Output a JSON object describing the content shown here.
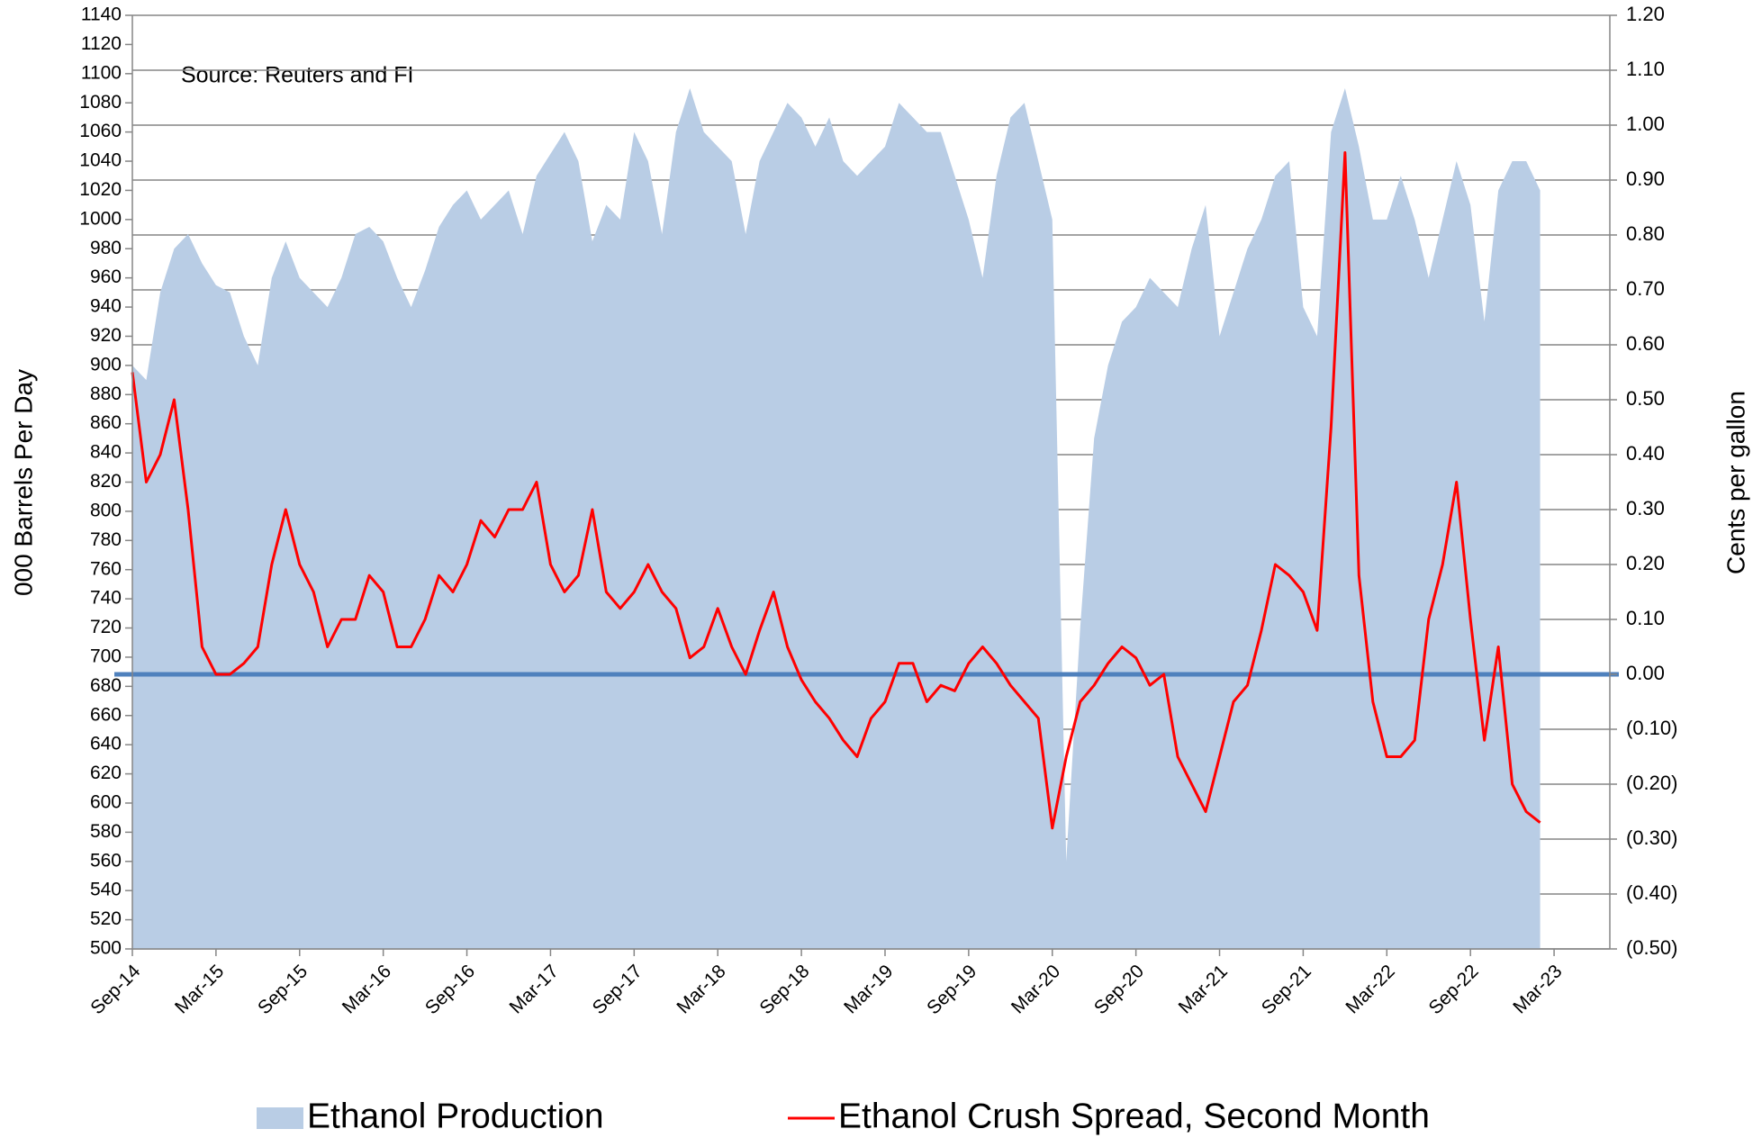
{
  "chart_data": {
    "type": "combo",
    "annotation": "Source: Reuters and FI",
    "ylabel": "000 Barrels Per Day",
    "y2label": "Cents per gallon",
    "categories": [
      "Sep-14",
      null,
      null,
      null,
      null,
      null,
      "Mar-15",
      null,
      null,
      null,
      null,
      null,
      "Sep-15",
      null,
      null,
      null,
      null,
      null,
      "Mar-16",
      null,
      null,
      null,
      null,
      null,
      "Sep-16",
      null,
      null,
      null,
      null,
      null,
      "Mar-17",
      null,
      null,
      null,
      null,
      null,
      "Sep-17",
      null,
      null,
      null,
      null,
      null,
      "Mar-18",
      null,
      null,
      null,
      null,
      null,
      "Sep-18",
      null,
      null,
      null,
      null,
      null,
      "Mar-19",
      null,
      null,
      null,
      null,
      null,
      "Sep-19",
      null,
      null,
      null,
      null,
      null,
      "Mar-20",
      null,
      null,
      null,
      null,
      null,
      "Sep-20",
      null,
      null,
      null,
      null,
      null,
      "Mar-21",
      null,
      null,
      null,
      null,
      null,
      "Sep-21",
      null,
      null,
      null,
      null,
      null,
      "Mar-22",
      null,
      null,
      null,
      null,
      null,
      "Sep-22",
      null,
      null,
      null,
      null,
      null,
      "Mar-23",
      null,
      null,
      null
    ],
    "series": [
      {
        "name": "Ethanol Production",
        "type": "area",
        "color": "#b9cde5",
        "axis": "y",
        "values": [
          900,
          890,
          950,
          980,
          990,
          970,
          955,
          950,
          920,
          900,
          960,
          985,
          960,
          950,
          940,
          960,
          990,
          995,
          985,
          960,
          940,
          965,
          995,
          1010,
          1020,
          1000,
          1010,
          1020,
          990,
          1030,
          1045,
          1060,
          1040,
          985,
          1010,
          1000,
          1060,
          1040,
          990,
          1060,
          1090,
          1060,
          1050,
          1040,
          990,
          1040,
          1060,
          1080,
          1070,
          1050,
          1070,
          1040,
          1030,
          1040,
          1050,
          1080,
          1070,
          1060,
          1060,
          1030,
          1000,
          960,
          1030,
          1070,
          1080,
          1040,
          1000,
          560,
          720,
          850,
          900,
          930,
          940,
          960,
          950,
          940,
          980,
          1010,
          920,
          950,
          980,
          1000,
          1030,
          1040,
          940,
          920,
          1060,
          1090,
          1050,
          1000,
          1000,
          1030,
          1000,
          960,
          1000,
          1040,
          1010,
          930,
          1020,
          1040,
          1040,
          1020,
          null,
          null,
          null,
          null
        ]
      },
      {
        "name": "Ethanol Crush Spread, Second Month",
        "type": "line",
        "color": "#ff0000",
        "axis": "y2",
        "values": [
          0.55,
          0.35,
          0.4,
          0.5,
          0.3,
          0.05,
          0,
          0,
          0.02,
          0.05,
          0.2,
          0.3,
          0.2,
          0.15,
          0.05,
          0.1,
          0.1,
          0.18,
          0.15,
          0.05,
          0.05,
          0.1,
          0.18,
          0.15,
          0.2,
          0.28,
          0.25,
          0.3,
          0.3,
          0.35,
          0.2,
          0.15,
          0.18,
          0.3,
          0.15,
          0.12,
          0.15,
          0.2,
          0.15,
          0.12,
          0.03,
          0.05,
          0.12,
          0.05,
          0,
          0.08,
          0.15,
          0.05,
          -0.01,
          -0.05,
          -0.08,
          -0.12,
          -0.15,
          -0.08,
          -0.05,
          0.02,
          0.02,
          -0.05,
          -0.02,
          -0.03,
          0.02,
          0.05,
          0.02,
          -0.02,
          -0.05,
          -0.08,
          -0.28,
          -0.15,
          -0.05,
          -0.02,
          0.02,
          0.05,
          0.03,
          -0.02,
          0,
          -0.15,
          -0.2,
          -0.25,
          -0.15,
          -0.05,
          -0.02,
          0.08,
          0.2,
          0.18,
          0.15,
          0.08,
          0.45,
          0.95,
          0.18,
          -0.05,
          -0.15,
          -0.15,
          -0.12,
          0.1,
          0.2,
          0.35,
          0.1,
          -0.12,
          0.05,
          -0.2,
          -0.25,
          -0.27,
          null,
          null,
          null,
          null
        ]
      }
    ],
    "ylim": [
      500,
      1140
    ],
    "yticks": [
      500,
      520,
      540,
      560,
      580,
      600,
      620,
      640,
      660,
      680,
      700,
      720,
      740,
      760,
      780,
      800,
      820,
      840,
      860,
      880,
      900,
      920,
      940,
      960,
      980,
      1000,
      1020,
      1040,
      1060,
      1080,
      1100,
      1120,
      1140
    ],
    "y2lim": [
      -0.5,
      1.2
    ],
    "y2ticks": [
      {
        "value": -0.5,
        "label": "(0.50)"
      },
      {
        "value": -0.4,
        "label": "(0.40)"
      },
      {
        "value": -0.3,
        "label": "(0.30)"
      },
      {
        "value": -0.2,
        "label": "(0.20)"
      },
      {
        "value": -0.1,
        "label": "(0.10)"
      },
      {
        "value": 0,
        "label": "0.00"
      },
      {
        "value": 0.1,
        "label": "0.10"
      },
      {
        "value": 0.2,
        "label": "0.20"
      },
      {
        "value": 0.3,
        "label": "0.30"
      },
      {
        "value": 0.4,
        "label": "0.40"
      },
      {
        "value": 0.5,
        "label": "0.50"
      },
      {
        "value": 0.6,
        "label": "0.60"
      },
      {
        "value": 0.7,
        "label": "0.70"
      },
      {
        "value": 0.8,
        "label": "0.80"
      },
      {
        "value": 0.9,
        "label": "0.90"
      },
      {
        "value": 1.0,
        "label": "1.00"
      },
      {
        "value": 1.1,
        "label": "1.10"
      },
      {
        "value": 1.2,
        "label": "1.20"
      }
    ],
    "negative_label_color": "#ff0000",
    "grid": "y2",
    "reference_line": {
      "axis": "y2",
      "value": 0,
      "color": "#4f81bd"
    },
    "legend": "bottom"
  }
}
